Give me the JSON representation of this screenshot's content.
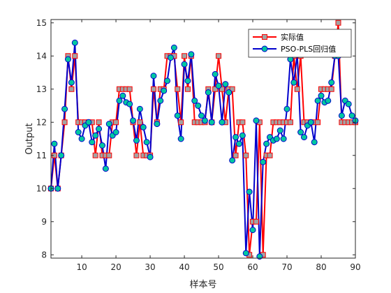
{
  "chart_data": {
    "type": "line",
    "xlabel": "样本号",
    "ylabel": "Output",
    "xlim": [
      1,
      90
    ],
    "ylim": [
      7.9,
      15.1
    ],
    "xticks": [
      10,
      20,
      30,
      40,
      50,
      60,
      70,
      80,
      90
    ],
    "yticks": [
      8,
      9,
      10,
      11,
      12,
      13,
      14,
      15
    ],
    "legend_position": "top-right",
    "grid": false,
    "x": [
      1,
      2,
      3,
      4,
      5,
      6,
      7,
      8,
      9,
      10,
      11,
      12,
      13,
      14,
      15,
      16,
      17,
      18,
      19,
      20,
      21,
      22,
      23,
      24,
      25,
      26,
      27,
      28,
      29,
      30,
      31,
      32,
      33,
      34,
      35,
      36,
      37,
      38,
      39,
      40,
      41,
      42,
      43,
      44,
      45,
      46,
      47,
      48,
      49,
      50,
      51,
      52,
      53,
      54,
      55,
      56,
      57,
      58,
      59,
      60,
      61,
      62,
      63,
      64,
      65,
      66,
      67,
      68,
      69,
      70,
      71,
      72,
      73,
      74,
      75,
      76,
      77,
      78,
      79,
      80,
      81,
      82,
      83,
      84,
      85,
      86,
      87,
      88,
      89,
      90
    ],
    "series": [
      {
        "name": "实际值",
        "color": "#ff0000",
        "marker": "square",
        "marker_fill": "#a3a3a3",
        "values": [
          10,
          11,
          10,
          11,
          12,
          14,
          13,
          14,
          12,
          12,
          12,
          12,
          12,
          11,
          12,
          11,
          11,
          11,
          12,
          12,
          13,
          13,
          13,
          13,
          12,
          11,
          12,
          11,
          11,
          11,
          13,
          12,
          13,
          13,
          14,
          14,
          14,
          13,
          12,
          14,
          13,
          14,
          12,
          12,
          12,
          12,
          13,
          12,
          13,
          14,
          13,
          12,
          13,
          13,
          11,
          12,
          12,
          11,
          8,
          9,
          9,
          12,
          8,
          11,
          11,
          12,
          12,
          12,
          12,
          12,
          12,
          14,
          13,
          14,
          12,
          12,
          12,
          12,
          12,
          13,
          13,
          13,
          13,
          14,
          15,
          12,
          12,
          12,
          12,
          12
        ]
      },
      {
        "name": "PSO-PLS回归值",
        "color": "#0000cc",
        "marker": "circle",
        "marker_fill": "#00c8a0",
        "values": [
          10,
          11.35,
          10,
          11,
          12.4,
          13.9,
          13.2,
          14.4,
          11.7,
          11.5,
          11.9,
          12,
          11.4,
          11.6,
          11.8,
          11.3,
          10.6,
          11.95,
          11.6,
          11.7,
          12.65,
          12.8,
          12.6,
          12.55,
          12.05,
          11.45,
          12.4,
          11.85,
          11.4,
          10.95,
          13.4,
          11.95,
          12.65,
          12.95,
          13.25,
          13.95,
          14.25,
          12.2,
          11.5,
          13.75,
          13.25,
          14.05,
          12.65,
          12.5,
          12.2,
          12.05,
          12.9,
          12,
          13.45,
          13.1,
          12,
          13.15,
          12.9,
          10.85,
          11.55,
          11.35,
          11.6,
          8.05,
          9.9,
          8.75,
          12.05,
          7.95,
          10.8,
          11.35,
          11.55,
          11.45,
          11.5,
          11.75,
          11.5,
          12.4,
          13.9,
          13.2,
          14.05,
          11.7,
          11.55,
          11.9,
          12,
          11.4,
          12.65,
          12.8,
          12.6,
          12.65,
          13.2,
          14,
          14,
          12.2,
          12.65,
          12.55,
          12.2,
          12.05
        ]
      }
    ]
  }
}
